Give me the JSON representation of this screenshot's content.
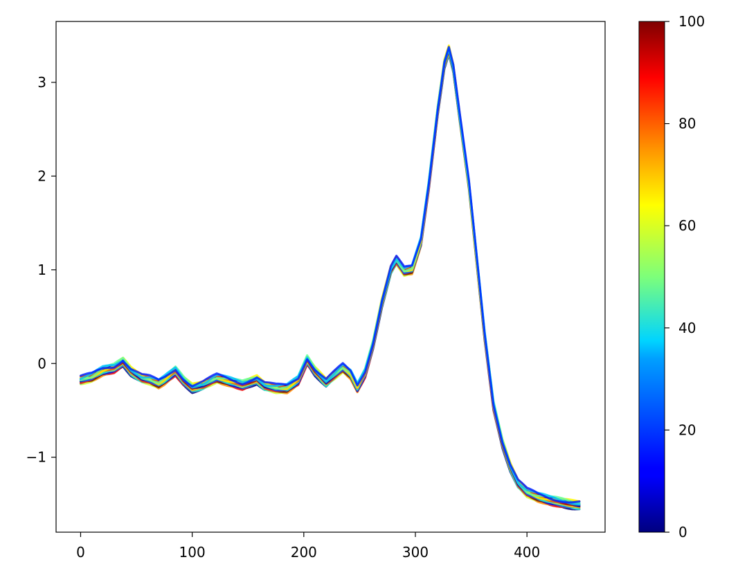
{
  "chart_data": {
    "type": "line",
    "title": "",
    "xlabel": "",
    "ylabel": "",
    "xlim": [
      -22,
      470
    ],
    "ylim": [
      -1.8,
      3.65
    ],
    "x_ticks": [
      0,
      100,
      200,
      300,
      400
    ],
    "y_ticks": [
      -1,
      0,
      1,
      2,
      3
    ],
    "x_tick_labels": [
      "0",
      "100",
      "200",
      "300",
      "400"
    ],
    "y_tick_labels": [
      "−1",
      "0",
      "1",
      "2",
      "3"
    ],
    "grid": false,
    "legend": "none",
    "colormap": "jet",
    "colorbar": {
      "range": [
        0,
        100
      ],
      "ticks": [
        0,
        20,
        40,
        60,
        80,
        100
      ],
      "tick_labels": [
        "0",
        "20",
        "40",
        "60",
        "80",
        "100"
      ]
    },
    "num_curves": 20,
    "series": [
      {
        "color_value": 25,
        "x": [
          0,
          10,
          20,
          30,
          38,
          45,
          55,
          62,
          70,
          75,
          85,
          92,
          100,
          110,
          122,
          135,
          145,
          158,
          165,
          175,
          185,
          195,
          203,
          210,
          220,
          228,
          235,
          242,
          248,
          255,
          262,
          270,
          278,
          283,
          290,
          297,
          305,
          312,
          320,
          326,
          330,
          334,
          340,
          348,
          355,
          362,
          370,
          378,
          385,
          392,
          400,
          410,
          420,
          430,
          440,
          447
        ],
        "y": [
          -0.18,
          -0.15,
          -0.08,
          -0.05,
          0.02,
          -0.08,
          -0.16,
          -0.18,
          -0.22,
          -0.18,
          -0.08,
          -0.18,
          -0.26,
          -0.23,
          -0.16,
          -0.2,
          -0.23,
          -0.17,
          -0.24,
          -0.27,
          -0.27,
          -0.18,
          0.04,
          -0.08,
          -0.2,
          -0.12,
          -0.05,
          -0.12,
          -0.26,
          -0.1,
          0.2,
          0.65,
          1.0,
          1.1,
          0.98,
          1.0,
          1.3,
          1.9,
          2.7,
          3.2,
          3.35,
          3.15,
          2.6,
          1.9,
          1.1,
          0.3,
          -0.45,
          -0.85,
          -1.1,
          -1.28,
          -1.38,
          -1.43,
          -1.46,
          -1.48,
          -1.5,
          -1.51
        ]
      }
    ]
  }
}
